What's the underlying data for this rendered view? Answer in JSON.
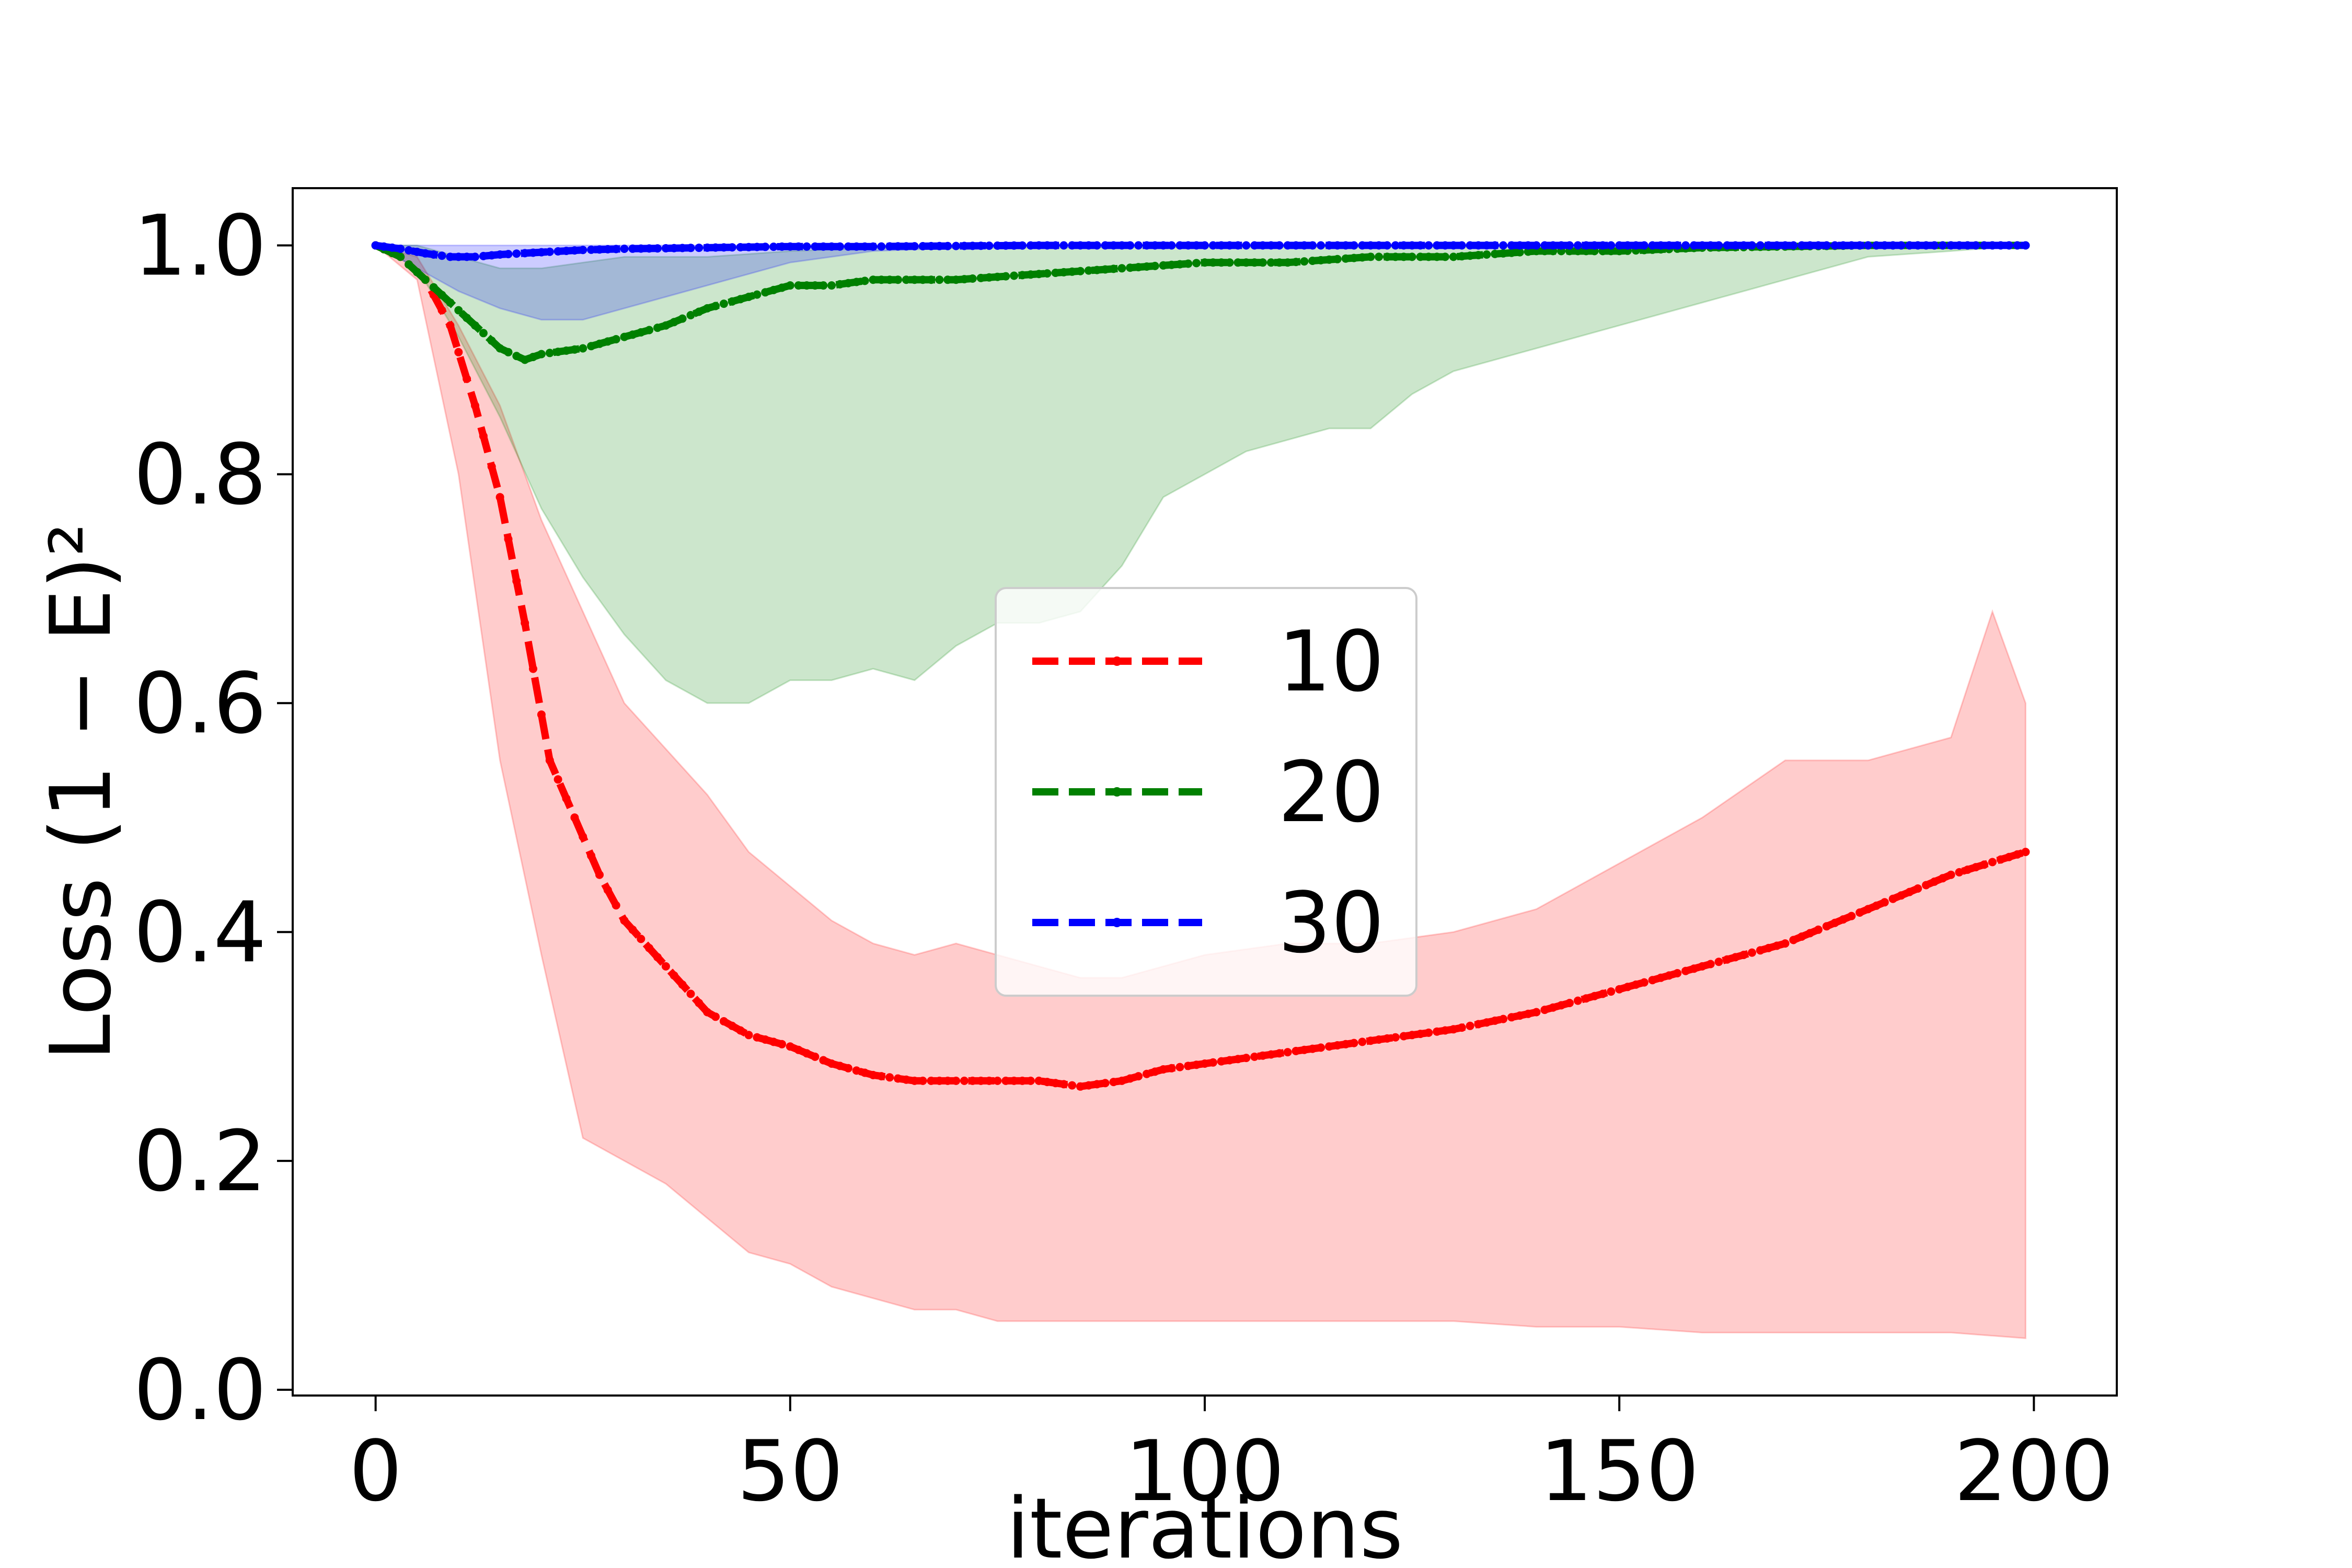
{
  "chart_data": {
    "type": "line",
    "xlabel": "iterations",
    "ylabel": "Loss (1 − E)²",
    "xlim": [
      -10,
      210
    ],
    "ylim": [
      -0.005,
      1.05
    ],
    "xticks": [
      0,
      50,
      100,
      150,
      200
    ],
    "xtick_labels": [
      "0",
      "50",
      "100",
      "150",
      "200"
    ],
    "yticks": [
      0.0,
      0.2,
      0.4,
      0.6,
      0.8,
      1.0
    ],
    "ytick_labels": [
      "0.0",
      "0.2",
      "0.4",
      "0.6",
      "0.8",
      "1.0"
    ],
    "grid": false,
    "legend_position": "center",
    "series": [
      {
        "name": "10",
        "color": "#ff0000",
        "band_color": "#ff0000",
        "mean": {
          "x": [
            0,
            3,
            6,
            9,
            12,
            15,
            18,
            21,
            24,
            27,
            30,
            35,
            40,
            45,
            50,
            55,
            60,
            65,
            70,
            75,
            80,
            85,
            90,
            95,
            100,
            110,
            120,
            130,
            140,
            150,
            160,
            170,
            180,
            190,
            199
          ],
          "y": [
            1.0,
            0.99,
            0.97,
            0.93,
            0.86,
            0.78,
            0.67,
            0.55,
            0.5,
            0.45,
            0.41,
            0.37,
            0.33,
            0.31,
            0.3,
            0.285,
            0.275,
            0.27,
            0.27,
            0.27,
            0.27,
            0.265,
            0.27,
            0.28,
            0.285,
            0.295,
            0.305,
            0.315,
            0.33,
            0.35,
            0.37,
            0.39,
            0.42,
            0.45,
            0.47
          ]
        },
        "upper": {
          "x": [
            0,
            5,
            10,
            15,
            20,
            25,
            30,
            35,
            40,
            45,
            50,
            55,
            60,
            65,
            70,
            75,
            80,
            85,
            90,
            95,
            100,
            110,
            120,
            130,
            140,
            150,
            160,
            170,
            180,
            190,
            195,
            199
          ],
          "y": [
            1.0,
            0.99,
            0.93,
            0.86,
            0.76,
            0.68,
            0.6,
            0.56,
            0.52,
            0.47,
            0.44,
            0.41,
            0.39,
            0.38,
            0.39,
            0.38,
            0.37,
            0.36,
            0.36,
            0.37,
            0.38,
            0.39,
            0.39,
            0.4,
            0.42,
            0.46,
            0.5,
            0.55,
            0.55,
            0.57,
            0.68,
            0.6
          ]
        },
        "lower": {
          "x": [
            0,
            5,
            10,
            15,
            20,
            25,
            30,
            35,
            40,
            45,
            50,
            55,
            60,
            65,
            70,
            75,
            80,
            85,
            90,
            95,
            100,
            110,
            120,
            130,
            140,
            150,
            160,
            170,
            180,
            190,
            199
          ],
          "y": [
            1.0,
            0.97,
            0.8,
            0.55,
            0.38,
            0.22,
            0.2,
            0.18,
            0.15,
            0.12,
            0.11,
            0.09,
            0.08,
            0.07,
            0.07,
            0.06,
            0.06,
            0.06,
            0.06,
            0.06,
            0.06,
            0.06,
            0.06,
            0.06,
            0.055,
            0.055,
            0.05,
            0.05,
            0.05,
            0.05,
            0.045
          ]
        }
      },
      {
        "name": "20",
        "color": "#008000",
        "band_color": "#008000",
        "mean": {
          "x": [
            0,
            3,
            6,
            9,
            12,
            15,
            18,
            20,
            25,
            30,
            35,
            40,
            45,
            50,
            55,
            60,
            70,
            80,
            90,
            100,
            110,
            120,
            130,
            140,
            150,
            160,
            170,
            180,
            190,
            199
          ],
          "y": [
            1.0,
            0.99,
            0.97,
            0.95,
            0.93,
            0.91,
            0.9,
            0.905,
            0.91,
            0.92,
            0.93,
            0.945,
            0.955,
            0.965,
            0.965,
            0.97,
            0.97,
            0.975,
            0.98,
            0.985,
            0.985,
            0.99,
            0.99,
            0.995,
            0.995,
            0.998,
            0.999,
            1.0,
            1.0,
            1.0
          ]
        },
        "upper": {
          "x": [
            0,
            5,
            10,
            15,
            20,
            25,
            30,
            40,
            50,
            60,
            80,
            100,
            120,
            140,
            160,
            180,
            199
          ],
          "y": [
            1.0,
            1.0,
            0.99,
            0.98,
            0.98,
            0.985,
            0.99,
            0.99,
            0.995,
            0.998,
            0.998,
            0.999,
            0.999,
            1.0,
            1.0,
            1.0,
            1.0
          ]
        },
        "lower": {
          "x": [
            0,
            5,
            10,
            15,
            20,
            25,
            30,
            35,
            40,
            45,
            50,
            55,
            60,
            65,
            70,
            75,
            80,
            85,
            90,
            95,
            100,
            105,
            110,
            115,
            120,
            125,
            130,
            140,
            150,
            160,
            170,
            180,
            190,
            199
          ],
          "y": [
            1.0,
            0.98,
            0.92,
            0.85,
            0.77,
            0.71,
            0.66,
            0.62,
            0.6,
            0.6,
            0.62,
            0.62,
            0.63,
            0.62,
            0.65,
            0.67,
            0.67,
            0.68,
            0.72,
            0.78,
            0.8,
            0.82,
            0.83,
            0.84,
            0.84,
            0.87,
            0.89,
            0.91,
            0.93,
            0.95,
            0.97,
            0.99,
            0.995,
            1.0
          ]
        }
      },
      {
        "name": "30",
        "color": "#0000ff",
        "band_color": "#0000ff",
        "mean": {
          "x": [
            0,
            3,
            6,
            9,
            12,
            15,
            20,
            25,
            30,
            40,
            50,
            60,
            80,
            100,
            150,
            199
          ],
          "y": [
            1.0,
            0.997,
            0.993,
            0.99,
            0.99,
            0.992,
            0.994,
            0.996,
            0.997,
            0.998,
            0.999,
            0.999,
            1.0,
            1.0,
            1.0,
            1.0
          ]
        },
        "upper": {
          "x": [
            0,
            10,
            20,
            50,
            100,
            199
          ],
          "y": [
            1.0,
            1.0,
            1.0,
            1.0,
            1.0,
            1.0
          ]
        },
        "lower": {
          "x": [
            0,
            5,
            10,
            15,
            20,
            25,
            30,
            35,
            40,
            45,
            50,
            55,
            60,
            70,
            80,
            199
          ],
          "y": [
            1.0,
            0.98,
            0.96,
            0.945,
            0.935,
            0.935,
            0.945,
            0.955,
            0.965,
            0.975,
            0.985,
            0.99,
            0.995,
            0.998,
            1.0,
            1.0
          ]
        }
      }
    ]
  }
}
